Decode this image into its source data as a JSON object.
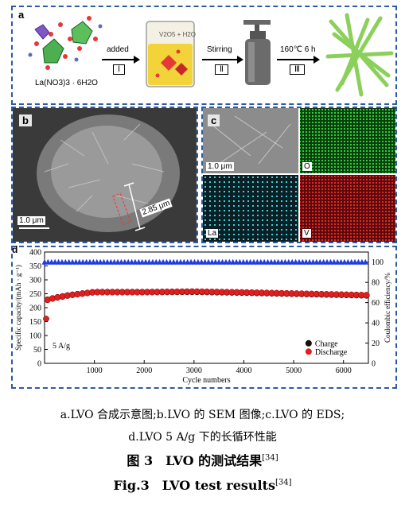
{
  "panel_a": {
    "tag": "a",
    "precursor": "La(NO3)3 · 6H2O",
    "solution": "V2O5 + H2O",
    "steps": [
      {
        "label": "added",
        "roman": "Ⅰ"
      },
      {
        "label": "Stirring",
        "roman": "Ⅱ"
      },
      {
        "label": "160℃ 6 h",
        "roman": "Ⅲ"
      }
    ]
  },
  "panel_b": {
    "tag": "b",
    "scale": "1.0 μm",
    "measure": "2.85 μm"
  },
  "panel_c": {
    "tag": "c",
    "scale": "1.0 μm",
    "maps": [
      "O",
      "La",
      "V"
    ]
  },
  "panel_d": {
    "tag": "d"
  },
  "chart_data": {
    "type": "scatter",
    "xlabel": "Cycle numbers",
    "ylabel_left": "Specific capacity/(mAh · g⁻¹)",
    "ylabel_right": "Coulombic efficiency/%",
    "annotation": "5 A/g",
    "xlim": [
      0,
      6500
    ],
    "ylim_left": [
      0,
      400
    ],
    "ylim_right": [
      0,
      110
    ],
    "x_ticks": [
      1000,
      2000,
      3000,
      4000,
      5000,
      6000
    ],
    "y_ticks_left": [
      0,
      50,
      100,
      150,
      200,
      250,
      300,
      350,
      400
    ],
    "y_ticks_right": [
      0,
      20,
      40,
      60,
      80,
      100
    ],
    "legend": [
      "Charge",
      "Discharge"
    ],
    "series": [
      {
        "name": "Charge",
        "axis": "left",
        "color": "#111111",
        "x": [
          0,
          50,
          200,
          500,
          1000,
          2000,
          3000,
          4000,
          5000,
          6000,
          6500
        ],
        "y": [
          160,
          228,
          235,
          245,
          256,
          256,
          257,
          254,
          250,
          246,
          244
        ]
      },
      {
        "name": "Discharge",
        "axis": "left",
        "color": "#e02020",
        "x": [
          0,
          50,
          200,
          500,
          1000,
          2000,
          3000,
          4000,
          5000,
          6000,
          6500
        ],
        "y": [
          160,
          228,
          235,
          245,
          256,
          256,
          258,
          255,
          251,
          247,
          245
        ]
      },
      {
        "axis": "right",
        "color": "#1f3de0",
        "marker": "triangle",
        "x": [
          0,
          6500
        ],
        "y": [
          100,
          100
        ]
      }
    ]
  },
  "caption": {
    "line1": "a.LVO 合成示意图;b.LVO 的 SEM 图像;c.LVO 的 EDS;",
    "line2": "d.LVO 5 A/g 下的长循环性能",
    "title_cn": "图 3　LVO 的测试结果",
    "title_en": "Fig.3　LVO test results",
    "ref": "[34]"
  }
}
